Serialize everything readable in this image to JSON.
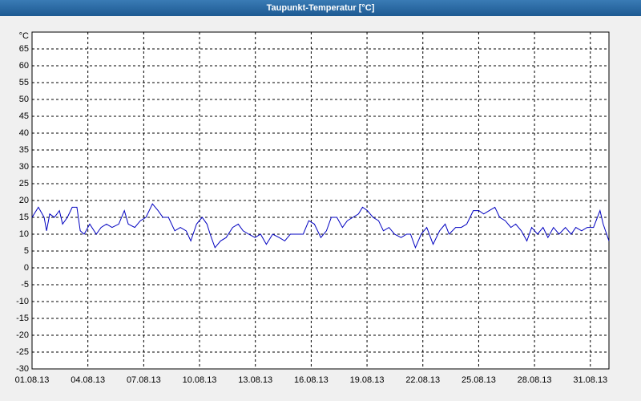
{
  "chart_data": {
    "type": "line",
    "title": "Taupunkt-Temperatur [°C]",
    "y_label": "°C",
    "xlim": [
      0,
      31
    ],
    "ylim": [
      -30,
      70
    ],
    "xticks": [
      {
        "value": 0,
        "label": "01.08.13"
      },
      {
        "value": 3,
        "label": "04.08.13"
      },
      {
        "value": 6,
        "label": "07.08.13"
      },
      {
        "value": 9,
        "label": "10.08.13"
      },
      {
        "value": 12,
        "label": "13.08.13"
      },
      {
        "value": 15,
        "label": "16.08.13"
      },
      {
        "value": 18,
        "label": "19.08.13"
      },
      {
        "value": 21,
        "label": "22.08.13"
      },
      {
        "value": 24,
        "label": "25.08.13"
      },
      {
        "value": 27,
        "label": "28.08.13"
      },
      {
        "value": 30,
        "label": "31.08.13"
      }
    ],
    "yticks": [
      -30,
      -25,
      -20,
      -15,
      -10,
      -5,
      0,
      5,
      10,
      15,
      20,
      25,
      30,
      35,
      40,
      45,
      50,
      55,
      60,
      65
    ],
    "grid": true,
    "series": [
      {
        "name": "Taupunkt",
        "color": "#0000c0",
        "x": [
          0,
          0.34,
          0.65,
          0.78,
          0.95,
          1.2,
          1.47,
          1.64,
          1.9,
          2.16,
          2.41,
          2.59,
          2.8,
          3.1,
          3.45,
          3.71,
          4.0,
          4.3,
          4.66,
          4.96,
          5.17,
          5.52,
          5.82,
          6.12,
          6.47,
          6.77,
          7.03,
          7.33,
          7.67,
          7.97,
          8.28,
          8.53,
          8.84,
          9.14,
          9.4,
          9.57,
          9.83,
          10.13,
          10.43,
          10.78,
          11.08,
          11.34,
          11.64,
          11.98,
          12.28,
          12.59,
          12.93,
          13.28,
          13.58,
          13.88,
          14.22,
          14.57,
          14.87,
          15.17,
          15.52,
          15.82,
          16.08,
          16.38,
          16.68,
          16.94,
          17.24,
          17.54,
          17.76,
          18.02,
          18.32,
          18.62,
          18.88,
          19.18,
          19.48,
          19.83,
          20.13,
          20.34,
          20.6,
          20.91,
          21.21,
          21.55,
          21.9,
          22.2,
          22.41,
          22.76,
          23.06,
          23.36,
          23.71,
          24.01,
          24.27,
          24.57,
          24.87,
          25.13,
          25.43,
          25.73,
          25.99,
          26.29,
          26.59,
          26.85,
          27.16,
          27.46,
          27.72,
          28.02,
          28.32,
          28.66,
          28.97,
          29.22,
          29.53,
          29.83,
          30.17,
          30.52,
          30.69,
          31
        ],
        "values": [
          15,
          18,
          15,
          11,
          16,
          15,
          17,
          13,
          15,
          18,
          18,
          11,
          10,
          13,
          10,
          12,
          13,
          12,
          13,
          17,
          13,
          12,
          14,
          15,
          19,
          17,
          15,
          15,
          11,
          12,
          11,
          8,
          13,
          15,
          13,
          10,
          6,
          8,
          9,
          12,
          13,
          11,
          10,
          9,
          10,
          7,
          10,
          9,
          8,
          10,
          10,
          10,
          14,
          13,
          9,
          11,
          15,
          15,
          12,
          14,
          15,
          16,
          18,
          17,
          15,
          14,
          11,
          12,
          10,
          9,
          10,
          10,
          6,
          10,
          12,
          7,
          11,
          13,
          10,
          12,
          12,
          13,
          17,
          17,
          16,
          17,
          18,
          15,
          14,
          12,
          13,
          11,
          8,
          12,
          10,
          12,
          9,
          12,
          10,
          12,
          10,
          12,
          11,
          12,
          12,
          17,
          13,
          8
        ]
      }
    ]
  }
}
